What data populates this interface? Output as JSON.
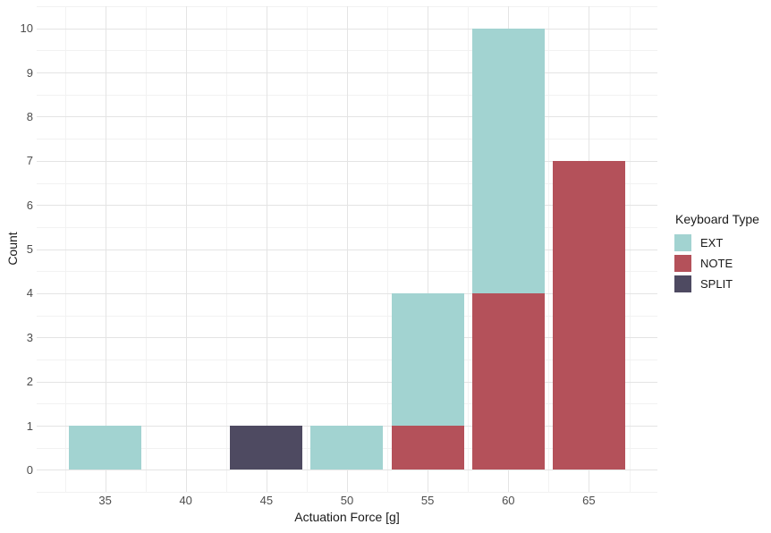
{
  "chart_data": {
    "type": "bar",
    "stacked": true,
    "title": "",
    "xlabel": "Actuation Force [g]",
    "ylabel": "Count",
    "xlim": [
      30.75,
      69.25
    ],
    "ylim": [
      -0.5,
      10.5
    ],
    "x_ticks": [
      35,
      40,
      45,
      50,
      55,
      60,
      65
    ],
    "y_ticks": [
      0,
      1,
      2,
      3,
      4,
      5,
      6,
      7,
      8,
      9,
      10
    ],
    "bar_width": 4.5,
    "grid": {
      "major": true,
      "minor": true,
      "background": "#ffffff"
    },
    "colors": {
      "EXT": "#a2d3d1",
      "NOTE": "#b4515a",
      "SPLIT": "#4e4a61"
    },
    "series_names": [
      "EXT",
      "NOTE",
      "SPLIT"
    ],
    "bars": [
      {
        "x": 35,
        "segments": [
          {
            "series": "EXT",
            "value": 1
          }
        ]
      },
      {
        "x": 40,
        "segments": []
      },
      {
        "x": 45,
        "segments": [
          {
            "series": "SPLIT",
            "value": 1
          }
        ]
      },
      {
        "x": 50,
        "segments": [
          {
            "series": "EXT",
            "value": 1
          }
        ]
      },
      {
        "x": 55,
        "segments": [
          {
            "series": "NOTE",
            "value": 1
          },
          {
            "series": "EXT",
            "value": 3
          }
        ]
      },
      {
        "x": 60,
        "segments": [
          {
            "series": "NOTE",
            "value": 4
          },
          {
            "series": "EXT",
            "value": 6
          }
        ]
      },
      {
        "x": 65,
        "segments": [
          {
            "series": "NOTE",
            "value": 7
          }
        ]
      }
    ],
    "legend": {
      "title": "Keyboard Type",
      "position": "right",
      "entries": [
        {
          "label": "EXT",
          "series": "EXT"
        },
        {
          "label": "NOTE",
          "series": "NOTE"
        },
        {
          "label": "SPLIT",
          "series": "SPLIT"
        }
      ]
    }
  }
}
